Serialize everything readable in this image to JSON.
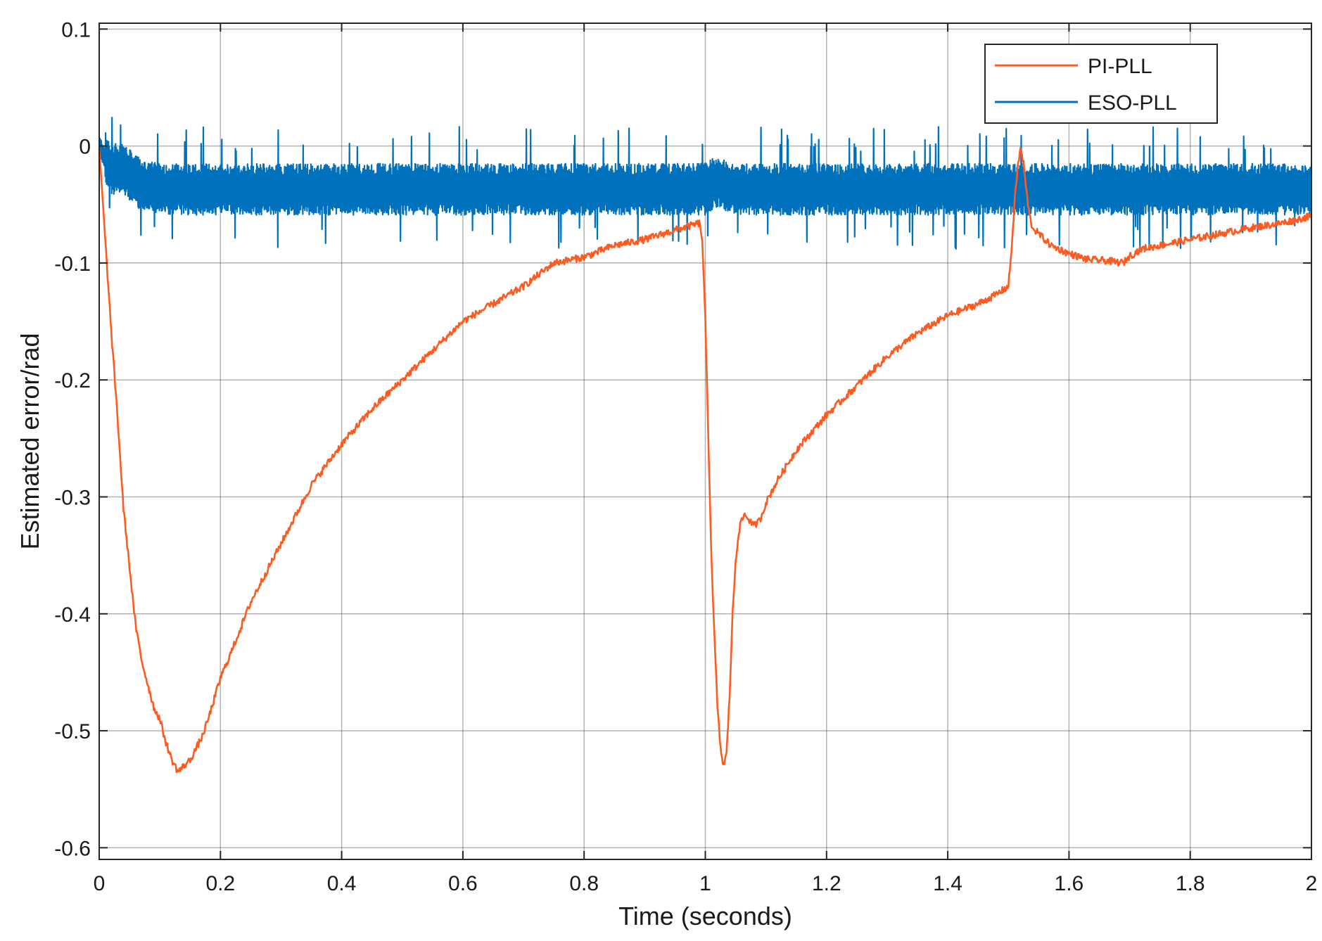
{
  "chart_data": {
    "type": "line",
    "title": "",
    "xlabel": "Time (seconds)",
    "ylabel": "Estimated error/rad",
    "xlim": [
      0,
      2
    ],
    "ylim": [
      -0.61,
      0.105
    ],
    "grid": true,
    "legend_position": "top-right",
    "x_ticks": [
      0,
      0.2,
      0.4,
      0.6,
      0.8,
      1,
      1.2,
      1.4,
      1.6,
      1.8,
      2
    ],
    "x_tick_labels": [
      "0",
      "0.2",
      "0.4",
      "0.6",
      "0.8",
      "1",
      "1.2",
      "1.4",
      "1.6",
      "1.8",
      "2"
    ],
    "y_ticks": [
      0.1,
      0,
      -0.1,
      -0.2,
      -0.3,
      -0.4,
      -0.5,
      -0.6
    ],
    "y_tick_labels": [
      "0.1",
      "0",
      "-0.1",
      "-0.2",
      "-0.3",
      "-0.4",
      "-0.5",
      "-0.6"
    ],
    "series": [
      {
        "name": "PI-PLL",
        "color": "#ff5a1f",
        "noise_amplitude": 0.003,
        "x": [
          0,
          0.005,
          0.01,
          0.015,
          0.02,
          0.03,
          0.04,
          0.05,
          0.06,
          0.07,
          0.08,
          0.09,
          0.1,
          0.11,
          0.12,
          0.13,
          0.14,
          0.15,
          0.16,
          0.17,
          0.18,
          0.2,
          0.22,
          0.25,
          0.28,
          0.3,
          0.33,
          0.35,
          0.4,
          0.45,
          0.5,
          0.55,
          0.6,
          0.65,
          0.7,
          0.75,
          0.8,
          0.85,
          0.9,
          0.95,
          0.99,
          0.995,
          1.0,
          1.005,
          1.01,
          1.015,
          1.02,
          1.025,
          1.03,
          1.035,
          1.04,
          1.045,
          1.05,
          1.055,
          1.06,
          1.065,
          1.07,
          1.08,
          1.09,
          1.1,
          1.12,
          1.15,
          1.2,
          1.25,
          1.3,
          1.35,
          1.4,
          1.45,
          1.48,
          1.5,
          1.505,
          1.51,
          1.515,
          1.52,
          1.525,
          1.53,
          1.535,
          1.54,
          1.55,
          1.57,
          1.6,
          1.63,
          1.66,
          1.69,
          1.7,
          1.72,
          1.75,
          1.8,
          1.85,
          1.9,
          1.95,
          2.0
        ],
        "y": [
          -0.002,
          -0.04,
          -0.08,
          -0.12,
          -0.16,
          -0.23,
          -0.31,
          -0.36,
          -0.41,
          -0.44,
          -0.46,
          -0.48,
          -0.49,
          -0.51,
          -0.525,
          -0.535,
          -0.53,
          -0.525,
          -0.515,
          -0.505,
          -0.49,
          -0.455,
          -0.43,
          -0.39,
          -0.36,
          -0.34,
          -0.31,
          -0.29,
          -0.255,
          -0.225,
          -0.2,
          -0.175,
          -0.15,
          -0.135,
          -0.12,
          -0.1,
          -0.095,
          -0.085,
          -0.08,
          -0.072,
          -0.066,
          -0.08,
          -0.15,
          -0.25,
          -0.35,
          -0.42,
          -0.48,
          -0.515,
          -0.53,
          -0.52,
          -0.47,
          -0.4,
          -0.355,
          -0.33,
          -0.32,
          -0.315,
          -0.318,
          -0.325,
          -0.32,
          -0.305,
          -0.285,
          -0.26,
          -0.23,
          -0.205,
          -0.18,
          -0.16,
          -0.145,
          -0.135,
          -0.127,
          -0.12,
          -0.09,
          -0.05,
          -0.02,
          -0.002,
          -0.015,
          -0.04,
          -0.06,
          -0.07,
          -0.075,
          -0.085,
          -0.092,
          -0.097,
          -0.098,
          -0.1,
          -0.094,
          -0.088,
          -0.085,
          -0.08,
          -0.075,
          -0.07,
          -0.066,
          -0.06
        ]
      },
      {
        "name": "ESO-PLL",
        "color": "#0072bd",
        "mean_x": [
          0,
          0.02,
          0.04,
          0.06,
          0.08,
          0.1,
          1.0,
          1.02,
          1.05,
          2.0
        ],
        "mean_y": [
          0.0,
          -0.02,
          -0.02,
          -0.03,
          -0.035,
          -0.037,
          -0.037,
          -0.03,
          -0.037,
          -0.037
        ],
        "band_half_width": 0.022,
        "spike_max": 0.017,
        "spike_min": -0.088
      }
    ]
  }
}
